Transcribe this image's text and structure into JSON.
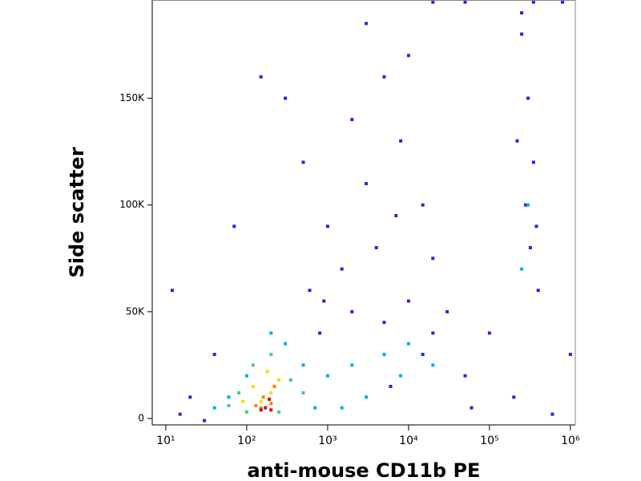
{
  "chart_data": {
    "type": "scatter",
    "xlabel": "anti-mouse CD11b PE",
    "ylabel": "Side scatter",
    "xscale": "log",
    "xlim": [
      6.8,
      1150000
    ],
    "ylim": [
      -3000,
      196000
    ],
    "xticks": [
      {
        "value": 10,
        "label": "10¹"
      },
      {
        "value": 100,
        "label": "10²"
      },
      {
        "value": 1000,
        "label": "10³"
      },
      {
        "value": 10000,
        "label": "10⁴"
      },
      {
        "value": 100000,
        "label": "10⁵"
      },
      {
        "value": 1000000,
        "label": "10⁶"
      }
    ],
    "yticks": [
      0,
      {
        "value": 50000,
        "label": "50K"
      },
      {
        "value": 100000,
        "label": "100K"
      },
      {
        "value": 150000,
        "label": "150K"
      }
    ],
    "series": [
      {
        "color": "#1a2fd0",
        "x": [
          300,
          500,
          1000,
          2000,
          3000,
          5000,
          8000,
          15000,
          4000,
          1500,
          20000,
          600,
          10000,
          3000,
          7000,
          250000,
          300000,
          350000,
          280000,
          320000,
          400000,
          250000,
          350000,
          220000,
          380000,
          100000,
          50000,
          30000,
          20000,
          10000,
          5000,
          2000,
          800,
          40,
          20,
          15,
          30,
          60000,
          200000,
          600000,
          1000000,
          50000,
          20000,
          800000,
          150,
          70,
          12,
          6000,
          900,
          15000
        ],
        "values": [
          150000,
          120000,
          90000,
          140000,
          110000,
          160000,
          130000,
          100000,
          80000,
          70000,
          75000,
          60000,
          170000,
          185000,
          95000,
          180000,
          150000,
          120000,
          100000,
          80000,
          60000,
          190000,
          195000,
          130000,
          90000,
          40000,
          20000,
          50000,
          40000,
          55000,
          45000,
          50000,
          40000,
          30000,
          10000,
          2000,
          -1000,
          5000,
          10000,
          2000,
          30000,
          195000,
          195000,
          195000,
          160000,
          90000,
          60000,
          15000,
          55000,
          30000
        ]
      },
      {
        "color": "#00b0e0",
        "x": [
          100,
          300,
          500,
          1000,
          2000,
          5000,
          10000,
          3000,
          700,
          60,
          40,
          200,
          8000,
          1500,
          20000,
          250000,
          300000
        ],
        "values": [
          20000,
          35000,
          25000,
          20000,
          25000,
          30000,
          35000,
          10000,
          5000,
          10000,
          5000,
          40000,
          20000,
          5000,
          25000,
          70000,
          100000
        ]
      },
      {
        "color": "#40d080",
        "x": [
          80,
          120,
          200,
          350,
          150,
          60,
          500,
          250,
          100
        ],
        "values": [
          12000,
          25000,
          30000,
          18000,
          5000,
          6000,
          12000,
          3000,
          3000
        ]
      },
      {
        "color": "#f0e000",
        "x": [
          120,
          180,
          200,
          150,
          250,
          90
        ],
        "values": [
          15000,
          22000,
          12000,
          8000,
          18000,
          8000
        ]
      },
      {
        "color": "#ff8000",
        "x": [
          160,
          200,
          130,
          220
        ],
        "values": [
          10000,
          7000,
          6000,
          15000
        ]
      },
      {
        "color": "#e00000",
        "x": [
          170,
          200,
          150,
          190
        ],
        "values": [
          5000,
          4000,
          4000,
          9000
        ]
      }
    ]
  }
}
